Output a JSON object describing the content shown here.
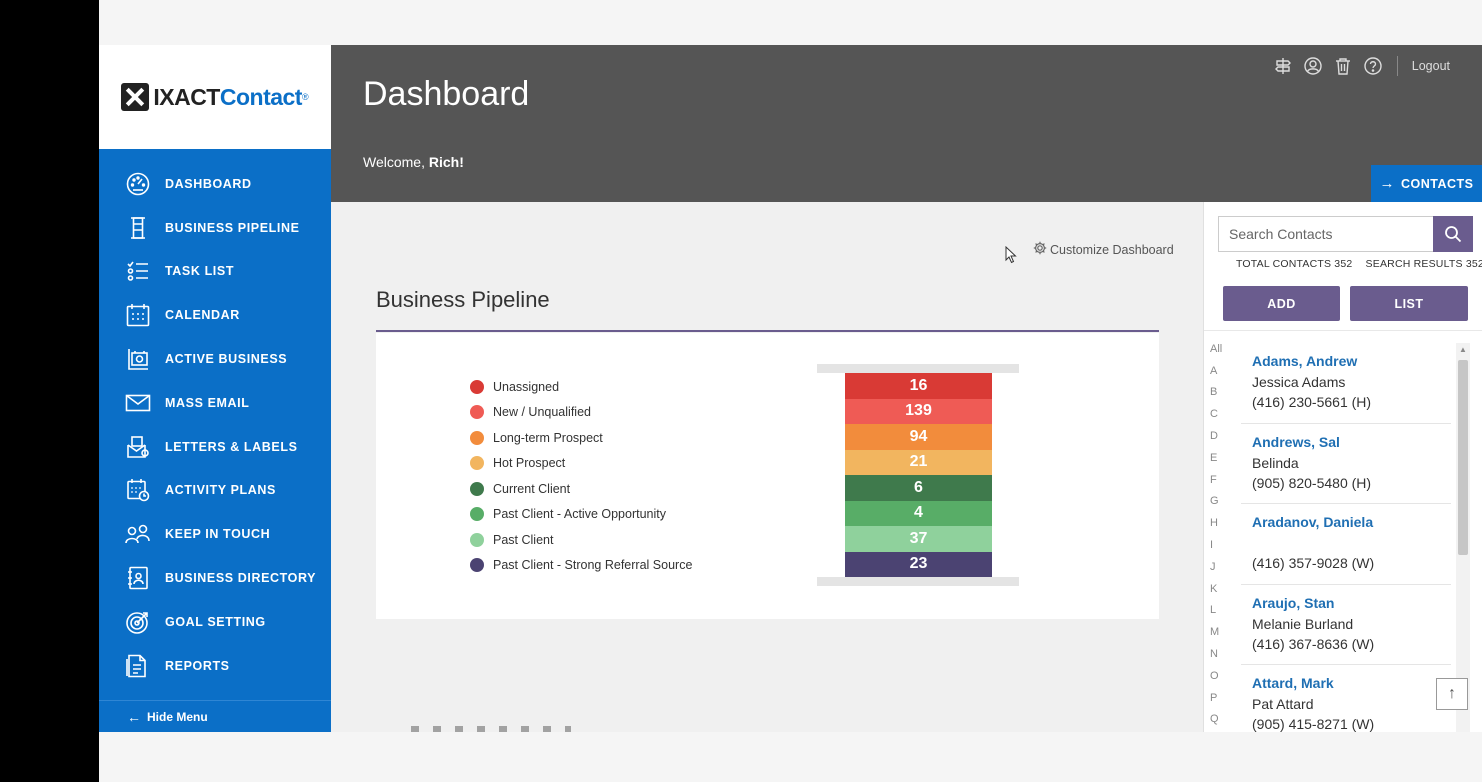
{
  "logo": {
    "ixact": "IXACT",
    "contact": "Contact",
    "reg": "®"
  },
  "nav": {
    "items": [
      {
        "label": "DASHBOARD",
        "icon": "gauge-icon"
      },
      {
        "label": "BUSINESS PIPELINE",
        "icon": "pipeline-icon"
      },
      {
        "label": "TASK LIST",
        "icon": "checklist-icon"
      },
      {
        "label": "CALENDAR",
        "icon": "calendar-icon"
      },
      {
        "label": "ACTIVE BUSINESS",
        "icon": "active-business-icon"
      },
      {
        "label": "MASS EMAIL",
        "icon": "envelope-icon"
      },
      {
        "label": "LETTERS & LABELS",
        "icon": "letters-icon"
      },
      {
        "label": "ACTIVITY PLANS",
        "icon": "activity-plans-icon"
      },
      {
        "label": "KEEP IN TOUCH",
        "icon": "people-icon"
      },
      {
        "label": "BUSINESS DIRECTORY",
        "icon": "directory-icon"
      },
      {
        "label": "GOAL SETTING",
        "icon": "target-icon"
      },
      {
        "label": "REPORTS",
        "icon": "report-icon"
      }
    ],
    "hide_menu": "Hide Menu"
  },
  "header": {
    "title": "Dashboard",
    "welcome_prefix": "Welcome, ",
    "welcome_name": "Rich!",
    "logout": "Logout",
    "contacts_button": "CONTACTS"
  },
  "main": {
    "customize": "Customize Dashboard",
    "section_title": "Business Pipeline"
  },
  "pipeline": {
    "stages": [
      {
        "label": "Unassigned",
        "value": "16",
        "color": "#d93a35"
      },
      {
        "label": "New / Unqualified",
        "value": "139",
        "color": "#ef5b55"
      },
      {
        "label": "Long-term Prospect",
        "value": "94",
        "color": "#f28c3c"
      },
      {
        "label": "Hot Prospect",
        "value": "21",
        "color": "#f2b55f"
      },
      {
        "label": "Current Client",
        "value": "6",
        "color": "#3f7a4c"
      },
      {
        "label": "Past Client - Active Opportunity",
        "value": "4",
        "color": "#58ad67"
      },
      {
        "label": "Past Client",
        "value": "37",
        "color": "#8fd19c"
      },
      {
        "label": "Past Client - Strong Referral Source",
        "value": "23",
        "color": "#4b4372"
      }
    ]
  },
  "right_panel": {
    "search_placeholder": "Search Contacts",
    "total_label": "TOTAL CONTACTS",
    "total_value": "352",
    "search_label": "SEARCH RESULTS",
    "search_value": "352",
    "add": "ADD",
    "list": "LIST",
    "alphabet": [
      "All",
      "A",
      "B",
      "C",
      "D",
      "E",
      "F",
      "G",
      "H",
      "I",
      "J",
      "K",
      "L",
      "M",
      "N",
      "O",
      "P",
      "Q"
    ],
    "contacts": [
      {
        "name": "Adams, Andrew",
        "line1": "Jessica Adams",
        "line2": "(416) 230-5661 (H)"
      },
      {
        "name": "Andrews, Sal",
        "line1": "Belinda",
        "line2": "(905) 820-5480 (H)"
      },
      {
        "name": "Aradanov, Daniela",
        "line1": "",
        "line2": "(416) 357-9028 (W)"
      },
      {
        "name": "Araujo, Stan",
        "line1": "Melanie Burland",
        "line2": "(416) 367-8636 (W)"
      },
      {
        "name": "Attard, Mark",
        "line1": "Pat Attard",
        "line2": "(905) 415-8271 (W)"
      }
    ]
  }
}
